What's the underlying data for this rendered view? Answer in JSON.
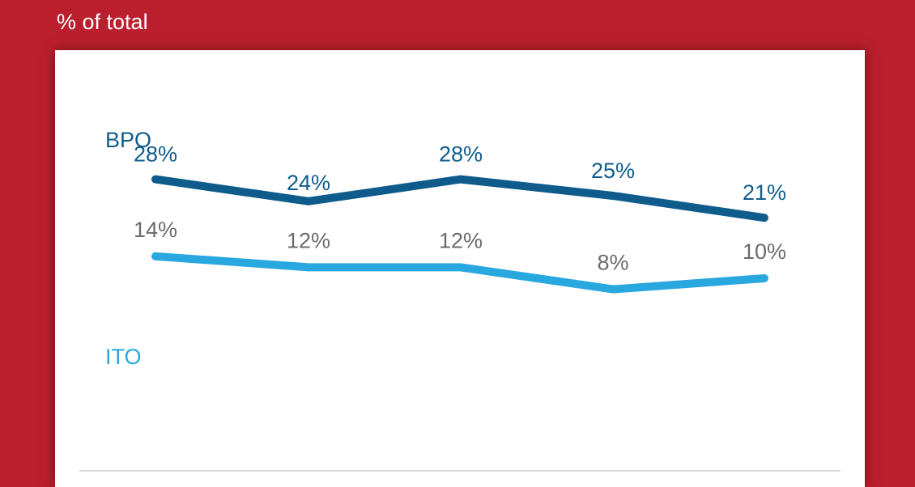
{
  "header": {
    "title": "% of total"
  },
  "chart_data": {
    "type": "line",
    "title": "",
    "ylabel": "% of total",
    "categories": [
      "",
      "",
      "",
      "",
      ""
    ],
    "series": [
      {
        "name": "BPO",
        "values": [
          28,
          24,
          28,
          25,
          21
        ],
        "labels": [
          "28%",
          "24%",
          "28%",
          "25%",
          "21%"
        ],
        "color": "#0f5c8c",
        "label_color": "#0f5c8c"
      },
      {
        "name": "ITO",
        "values": [
          14,
          12,
          12,
          8,
          10
        ],
        "labels": [
          "14%",
          "12%",
          "12%",
          "8%",
          "10%"
        ],
        "color": "#29a8e0",
        "label_color": "#6b6b6b"
      }
    ],
    "grid": false,
    "legend": "inline-left"
  }
}
